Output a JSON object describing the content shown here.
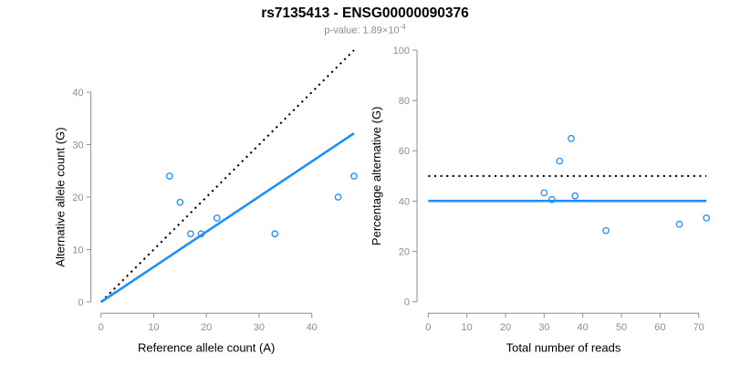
{
  "header": {
    "title": "rs7135413 - ENSG00000090376",
    "pvalue_prefix": "p-value: 1.89×10",
    "pvalue_exponent": "-4"
  },
  "colors": {
    "accent": "#1E90FF",
    "dotted_line": "#000000",
    "axis": "#8e8e8e",
    "tick_text": "#8e8e8e",
    "axis_title_text": "#000000",
    "subtitle_text": "#8c8c8c"
  },
  "chart_data": [
    {
      "type": "scatter",
      "panel": "left",
      "title": "",
      "xlabel": "Reference allele count (A)",
      "ylabel": "Alternative allele count (G)",
      "xlim": [
        0,
        40
      ],
      "ylim": [
        0,
        40
      ],
      "xticks": [
        0,
        10,
        20,
        30,
        40
      ],
      "yticks": [
        0,
        10,
        20,
        30,
        40
      ],
      "grid": false,
      "legend": "none",
      "point_color": "#1E90FF",
      "points": [
        [
          13,
          24
        ],
        [
          15,
          19
        ],
        [
          17,
          13
        ],
        [
          19,
          13
        ],
        [
          22,
          16
        ],
        [
          33,
          13
        ],
        [
          45,
          20
        ],
        [
          48,
          24
        ]
      ],
      "lines": [
        {
          "name": "identity-line",
          "style": "dotted",
          "color": "#000000",
          "from": [
            0,
            0
          ],
          "to": [
            48,
            48
          ]
        },
        {
          "name": "fit-line",
          "style": "solid",
          "color": "#1E90FF",
          "from": [
            0,
            0
          ],
          "to": [
            48,
            32.15
          ]
        }
      ]
    },
    {
      "type": "scatter",
      "panel": "right",
      "title": "",
      "xlabel": "Total number of reads",
      "ylabel": "Percentage alternative (G)",
      "xlim": [
        0,
        70
      ],
      "ylim": [
        0,
        100
      ],
      "xticks": [
        0,
        10,
        20,
        30,
        40,
        50,
        60,
        70
      ],
      "yticks": [
        0,
        20,
        40,
        60,
        80,
        100
      ],
      "grid": false,
      "legend": "none",
      "point_color": "#1E90FF",
      "points": [
        [
          37,
          64.9
        ],
        [
          34,
          55.9
        ],
        [
          30,
          43.3
        ],
        [
          32,
          40.6
        ],
        [
          38,
          42.1
        ],
        [
          46,
          28.3
        ],
        [
          65,
          30.8
        ],
        [
          72,
          33.3
        ]
      ],
      "lines": [
        {
          "name": "null-50pct-line",
          "style": "dotted",
          "color": "#000000",
          "from": [
            0,
            50
          ],
          "to": [
            72,
            50
          ]
        },
        {
          "name": "observed-pct-line",
          "style": "solid",
          "color": "#1E90FF",
          "from": [
            0,
            40.1
          ],
          "to": [
            72,
            40.1
          ]
        }
      ]
    }
  ]
}
